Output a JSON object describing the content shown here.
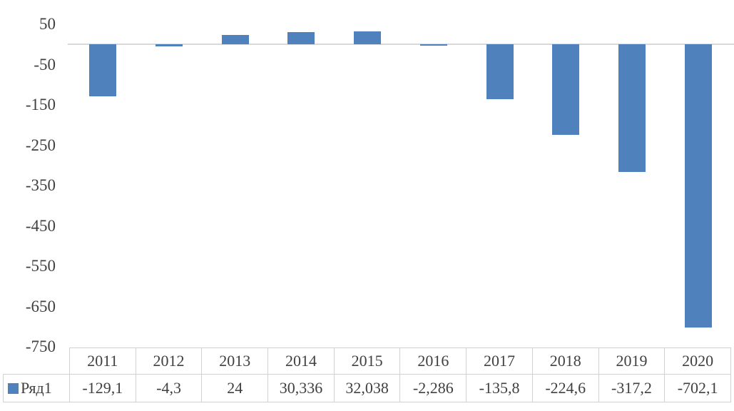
{
  "chart_data": {
    "type": "bar",
    "title": "",
    "xlabel": "",
    "ylabel": "",
    "categories": [
      "2011",
      "2012",
      "2013",
      "2014",
      "2015",
      "2016",
      "2017",
      "2018",
      "2019",
      "2020"
    ],
    "series": [
      {
        "name": "Ряд1",
        "values": [
          -129.1,
          -4.3,
          24,
          30.336,
          32.038,
          -2.286,
          -135.8,
          -224.6,
          -317.2,
          -702.1
        ]
      }
    ],
    "value_labels": [
      "-129,1",
      "-4,3",
      "24",
      "30,336",
      "32,038",
      "-2,286",
      "-135,8",
      "-224,6",
      "-317,2",
      "-702,1"
    ],
    "y_ticks": [
      50,
      -50,
      -150,
      -250,
      -350,
      -450,
      -550,
      -650,
      -750
    ],
    "y_tick_labels": [
      "50",
      "-50",
      "-150",
      "-250",
      "-350",
      "-450",
      "-550",
      "-650",
      "-750"
    ],
    "ylim": [
      -750,
      50
    ],
    "y_major_unit": 100,
    "gridlines": "zero-axis-only",
    "legend": {
      "label": "Ряд1",
      "position": "data-table-left",
      "marker_color": "#4f81bd"
    },
    "colors": {
      "bar": "#4f81bd",
      "axis_text": "#404040",
      "zero_line": "#d9d9d9",
      "table_border": "#d1d1d1",
      "background": "#ffffff"
    }
  }
}
